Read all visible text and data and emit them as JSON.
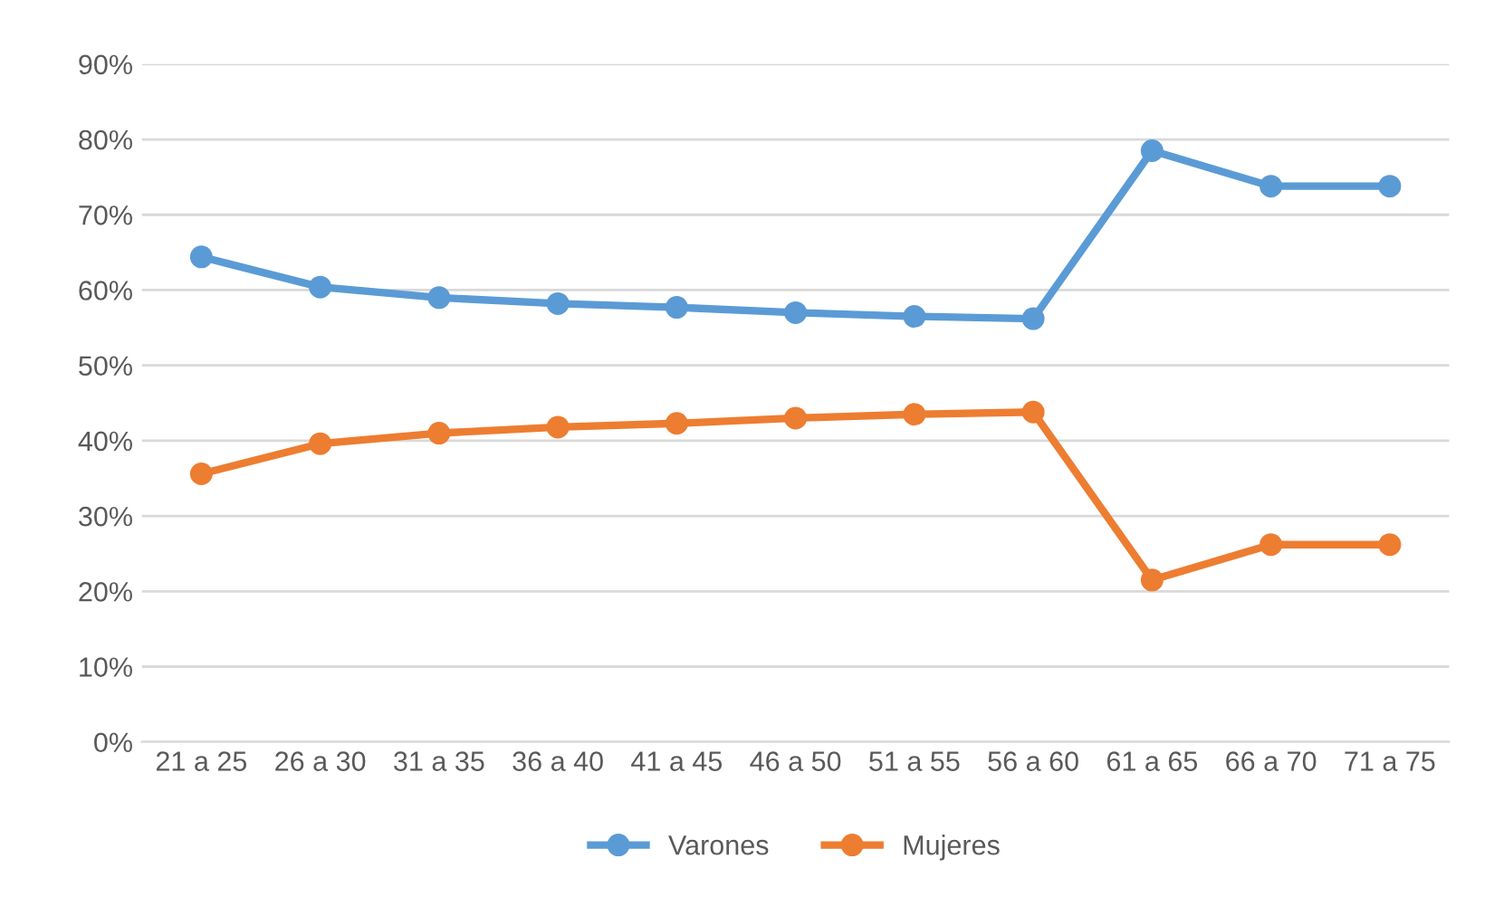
{
  "chart_data": {
    "type": "line",
    "categories": [
      "21 a 25",
      "26 a 30",
      "31 a 35",
      "36 a 40",
      "41 a 45",
      "46 a 50",
      "51 a 55",
      "56 a 60",
      "61 a 65",
      "66 a 70",
      "71 a 75"
    ],
    "series": [
      {
        "name": "Varones",
        "color": "#5b9bd5",
        "values": [
          64.4,
          60.4,
          59,
          58.2,
          57.7,
          57,
          56.5,
          56.2,
          78.5,
          73.8,
          73.8
        ]
      },
      {
        "name": "Mujeres",
        "color": "#ed7d31",
        "values": [
          35.6,
          39.6,
          41,
          41.8,
          42.3,
          43,
          43.5,
          43.8,
          21.5,
          26.2,
          26.2
        ]
      }
    ],
    "ylim": [
      0,
      90
    ],
    "yticks": [
      {
        "value": 0,
        "label": "0%"
      },
      {
        "value": 10,
        "label": "10%"
      },
      {
        "value": 20,
        "label": "20%"
      },
      {
        "value": 30,
        "label": "30%"
      },
      {
        "value": 40,
        "label": "40%"
      },
      {
        "value": 50,
        "label": "50%"
      },
      {
        "value": 60,
        "label": "60%"
      },
      {
        "value": 70,
        "label": "70%"
      },
      {
        "value": 80,
        "label": "80%"
      },
      {
        "value": 90,
        "label": "90%"
      }
    ],
    "grid": "y",
    "legend": "bottom",
    "marker": "circle",
    "line_style": "solid"
  }
}
